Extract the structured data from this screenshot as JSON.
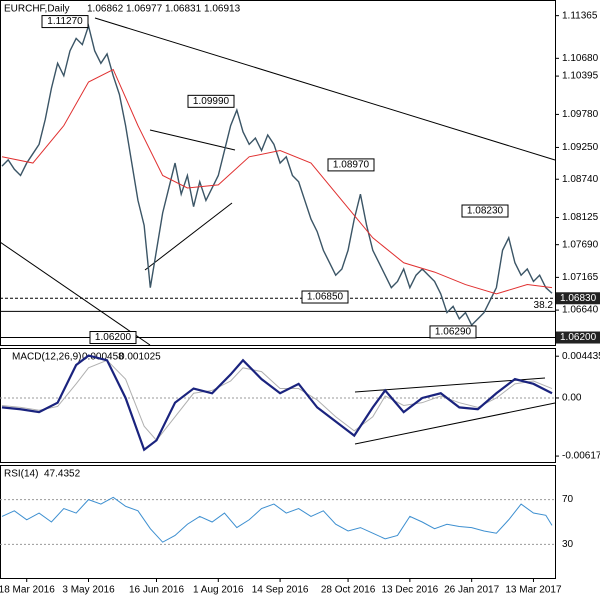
{
  "chart_data": {
    "type": "line",
    "header": {
      "symbol": "EURCHF,Daily",
      "ohlc": [
        1.06862,
        1.06977,
        1.06831,
        1.06913
      ]
    },
    "series": [
      {
        "name": "EURCHF",
        "color": "#3b5566",
        "values": [
          1.0895,
          1.0905,
          1.089,
          1.088,
          1.09,
          1.0915,
          1.093,
          1.097,
          1.102,
          1.106,
          1.104,
          1.108,
          1.11,
          1.109,
          1.112,
          1.108,
          1.106,
          1.1075,
          1.104,
          1.101,
          1.096,
          1.09,
          1.084,
          1.08,
          1.07,
          1.076,
          1.082,
          1.086,
          1.09,
          1.085,
          1.088,
          1.083,
          1.087,
          1.084,
          1.086,
          1.088,
          1.092,
          1.096,
          1.0985,
          1.095,
          1.093,
          1.094,
          1.092,
          1.0945,
          1.093,
          1.09,
          1.091,
          1.088,
          1.087,
          1.084,
          1.081,
          1.079,
          1.076,
          1.074,
          1.072,
          1.073,
          1.076,
          1.081,
          1.085,
          1.08,
          1.076,
          1.074,
          1.072,
          1.07,
          1.071,
          1.073,
          1.07,
          1.072,
          1.073,
          1.072,
          1.071,
          1.069,
          1.066,
          1.067,
          1.065,
          1.066,
          1.064,
          1.065,
          1.066,
          1.068,
          1.07,
          1.076,
          1.078,
          1.074,
          1.072,
          1.073,
          1.071,
          1.072,
          1.07,
          1.0691
        ]
      }
    ],
    "ma": {
      "color": "#e03030",
      "x": [
        0,
        5,
        10,
        14,
        18,
        22,
        26,
        30,
        35,
        40,
        45,
        50,
        55,
        60,
        65,
        70,
        75,
        80,
        85,
        89
      ],
      "values": [
        1.091,
        1.09,
        1.096,
        1.103,
        1.105,
        1.096,
        1.088,
        1.086,
        1.0865,
        1.091,
        1.092,
        1.09,
        1.084,
        1.078,
        1.074,
        1.0725,
        1.0705,
        1.069,
        1.0705,
        1.07
      ]
    },
    "ylim": [
      1.0608,
      1.116
    ],
    "yticks": [
      1.11365,
      {
        "value": 1.1068,
        "label": "1.10680"
      },
      1.10395,
      {
        "value": 1.0978,
        "label": "1.09780"
      },
      {
        "value": 1.0925,
        "label": "1.09250"
      },
      {
        "value": 1.0874,
        "label": "1.08740"
      },
      1.08125,
      {
        "value": 1.0769,
        "label": "1.07690"
      },
      1.07165,
      {
        "value": 1.0664,
        "label": "1.06640"
      }
    ],
    "price_tags": [
      {
        "value": 1.0683,
        "label": "1.06830"
      },
      {
        "value": 1.062,
        "label": "1.06200"
      }
    ],
    "fib": {
      "ratio": 38.2,
      "price": 1.0662
    },
    "annotations": [
      {
        "value": 1.1127,
        "label": "1.11270"
      },
      {
        "value": 1.0999,
        "label": "1.09990"
      },
      {
        "value": 1.0897,
        "label": "1.08970"
      },
      {
        "value": 1.0823,
        "label": "1.08230"
      },
      {
        "value": 1.0685,
        "label": "1.06850"
      },
      {
        "value": 1.0629,
        "label": "1.06290"
      },
      {
        "value": 1.062,
        "label": "1.06200"
      }
    ],
    "xlim": [
      0,
      89
    ],
    "xticks": [
      {
        "value": 4,
        "label": "18 Mar 2016"
      },
      {
        "value": 14,
        "label": "3 May 2016"
      },
      {
        "value": 25,
        "label": "16 Jun 2016"
      },
      {
        "value": 35,
        "label": "1 Aug 2016"
      },
      {
        "value": 45,
        "label": "14 Sep 2016"
      },
      {
        "value": 56,
        "label": "28 Oct 2016"
      },
      {
        "value": 66,
        "label": "13 Dec 2016"
      },
      {
        "value": 76,
        "label": "26 Jan 2017"
      },
      {
        "value": 86,
        "label": "13 Mar 2017"
      }
    ],
    "macd": {
      "title": "MACD(12,26,9)",
      "readings": [
        0.000458,
        0.001025
      ],
      "x": [
        0,
        3,
        6,
        9,
        12,
        14,
        17,
        20,
        23,
        25,
        28,
        31,
        34,
        37,
        39,
        42,
        45,
        48,
        51,
        54,
        57,
        60,
        62,
        65,
        68,
        71,
        74,
        77,
        80,
        83,
        86,
        89
      ],
      "series": [
        {
          "color": "#1a237e",
          "values": [
            -0.001,
            -0.0012,
            -0.0015,
            -0.0005,
            0.0035,
            0.0045,
            0.004,
            0.0,
            -0.0055,
            -0.0045,
            -0.0005,
            0.001,
            0.0005,
            0.0025,
            0.004,
            0.002,
            0.0005,
            0.0015,
            -0.001,
            -0.0025,
            -0.004,
            -0.001,
            0.0008,
            -0.0015,
            0.0,
            0.0005,
            -0.001,
            -0.0012,
            0.0005,
            0.002,
            0.0015,
            0.0005
          ]
        },
        {
          "color": "#b0b0b0",
          "values": [
            -0.0008,
            -0.001,
            -0.0013,
            -0.0009,
            0.0015,
            0.0032,
            0.004,
            0.002,
            -0.003,
            -0.0045,
            -0.002,
            0.0005,
            0.0008,
            0.0018,
            0.0032,
            0.0028,
            0.001,
            0.001,
            -0.0002,
            -0.002,
            -0.0035,
            -0.002,
            0.0002,
            -0.0008,
            -0.0005,
            0.0002,
            -0.0005,
            -0.001,
            0.0,
            0.0015,
            0.0018,
            0.001
          ]
        }
      ],
      "ylim": [
        -0.0068,
        0.0052
      ],
      "yticks": [
        0.004435,
        {
          "value": 0,
          "label": "0.00"
        },
        -0.00617
      ]
    },
    "rsi": {
      "title": "RSI(14)",
      "reading": 47.4352,
      "color": "#3d8fd0",
      "x": [
        0,
        2,
        4,
        6,
        8,
        10,
        12,
        14,
        16,
        18,
        20,
        22,
        24,
        26,
        28,
        30,
        32,
        34,
        36,
        38,
        40,
        42,
        44,
        46,
        48,
        50,
        52,
        54,
        56,
        58,
        60,
        62,
        64,
        66,
        68,
        70,
        72,
        74,
        76,
        78,
        80,
        82,
        84,
        86,
        88,
        89
      ],
      "values": [
        55,
        60,
        52,
        58,
        50,
        62,
        58,
        70,
        66,
        72,
        64,
        60,
        44,
        32,
        38,
        48,
        55,
        50,
        58,
        45,
        52,
        62,
        66,
        58,
        62,
        55,
        60,
        48,
        42,
        45,
        40,
        35,
        38,
        55,
        50,
        44,
        48,
        46,
        45,
        42,
        40,
        52,
        66,
        58,
        56,
        47
      ],
      "ylim": [
        0,
        100
      ],
      "yticks": [
        70,
        30
      ]
    }
  }
}
